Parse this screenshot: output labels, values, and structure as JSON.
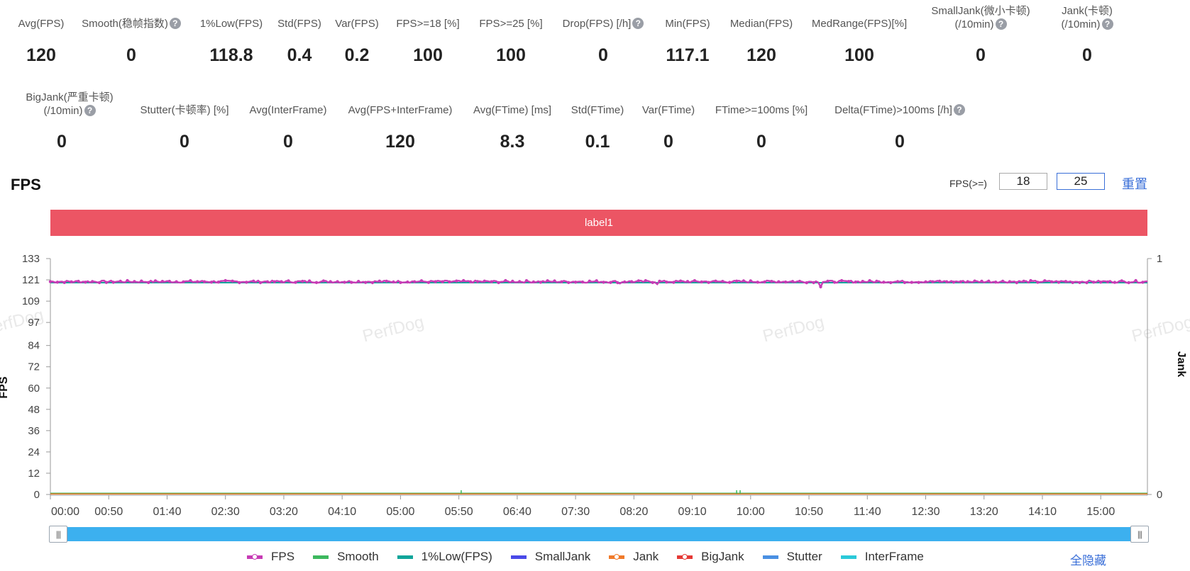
{
  "metrics_row1": [
    {
      "label": "Avg(FPS)",
      "value": "120",
      "help": false
    },
    {
      "label": "Smooth(稳帧指数)",
      "value": "0",
      "help": true
    },
    {
      "label": "1%Low(FPS)",
      "value": "118.8",
      "help": false
    },
    {
      "label": "Std(FPS)",
      "value": "0.4",
      "help": false
    },
    {
      "label": "Var(FPS)",
      "value": "0.2",
      "help": false
    },
    {
      "label": "FPS>=18 [%]",
      "value": "100",
      "help": false
    },
    {
      "label": "FPS>=25 [%]",
      "value": "100",
      "help": false
    },
    {
      "label": "Drop(FPS) [/h]",
      "value": "0",
      "help": true
    },
    {
      "label": "Min(FPS)",
      "value": "117.1",
      "help": false
    },
    {
      "label": "Median(FPS)",
      "value": "120",
      "help": false
    },
    {
      "label": "MedRange(FPS)[%]",
      "value": "100",
      "help": false
    },
    {
      "label": "SmallJank(微小卡顿)",
      "label2": "(/10min)",
      "value": "0",
      "help": true
    },
    {
      "label": "Jank(卡顿)",
      "label2": "(/10min)",
      "value": "0",
      "help": true
    }
  ],
  "metrics_row2": [
    {
      "label": "BigJank(严重卡顿)",
      "label2": "(/10min)",
      "value": "0",
      "help": true
    },
    {
      "label": "Stutter(卡顿率) [%]",
      "value": "0",
      "help": false
    },
    {
      "label": "Avg(InterFrame)",
      "value": "0",
      "help": false
    },
    {
      "label": "Avg(FPS+InterFrame)",
      "value": "120",
      "help": false
    },
    {
      "label": "Avg(FTime) [ms]",
      "value": "8.3",
      "help": false
    },
    {
      "label": "Std(FTime)",
      "value": "0.1",
      "help": false
    },
    {
      "label": "Var(FTime)",
      "value": "0",
      "help": false
    },
    {
      "label": "FTime>=100ms [%]",
      "value": "0",
      "help": false
    },
    {
      "label": "Delta(FTime)>100ms [/h]",
      "value": "0",
      "help": true
    }
  ],
  "section_title": "FPS",
  "threshold": {
    "label": "FPS(>=)",
    "value1": "18",
    "value2": "25"
  },
  "reset_label": "重置",
  "band_label": "label1",
  "hide_all_label": "全隐藏",
  "watermark": "PerfDog",
  "colors": {
    "fps": "#c73bb5",
    "smooth": "#3db85e",
    "low": "#10a59a",
    "smalljank": "#4a4ae8",
    "jank": "#f07a2a",
    "bigjank": "#e53935",
    "stutter": "#4a90e2",
    "interframe": "#2bc9d9",
    "band": "#ec5564"
  },
  "chart_data": {
    "type": "line",
    "title": "",
    "xlabel": "",
    "ylabel": "FPS",
    "y2label": "Jank",
    "ylim": [
      0,
      133
    ],
    "y2lim": [
      0,
      1
    ],
    "yticks": [
      "0",
      "12",
      "24",
      "36",
      "48",
      "60",
      "72",
      "84",
      "97",
      "109",
      "121",
      "133"
    ],
    "y2ticks": [
      "0",
      "1"
    ],
    "xticks": [
      "00:00",
      "00:50",
      "01:40",
      "02:30",
      "03:20",
      "04:10",
      "05:00",
      "05:50",
      "06:40",
      "07:30",
      "08:20",
      "09:10",
      "10:00",
      "10:50",
      "11:40",
      "12:30",
      "13:20",
      "14:10",
      "15:00"
    ],
    "x_range_seconds": [
      0,
      940
    ],
    "grid": false,
    "legend": "bottom",
    "series": [
      {
        "name": "FPS",
        "key": "fps",
        "approx_value": 120,
        "range": [
          117.1,
          121
        ]
      },
      {
        "name": "Smooth",
        "key": "smooth",
        "approx_value": 0
      },
      {
        "name": "1%Low(FPS)",
        "key": "low",
        "approx_value": 119.5
      },
      {
        "name": "SmallJank",
        "key": "smalljank",
        "approx_value": 0
      },
      {
        "name": "Jank",
        "key": "jank",
        "approx_value": 0
      },
      {
        "name": "BigJank",
        "key": "bigjank",
        "approx_value": 0
      },
      {
        "name": "Stutter",
        "key": "stutter",
        "approx_value": 0
      },
      {
        "name": "InterFrame",
        "key": "interframe",
        "approx_value": 0
      }
    ]
  }
}
